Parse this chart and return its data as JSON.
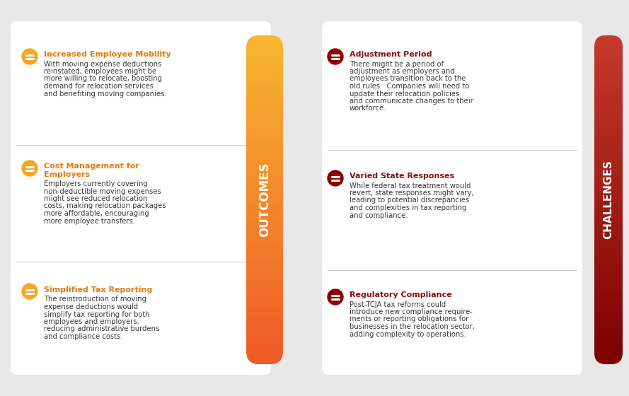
{
  "bg_color": "#e8e8e8",
  "panel_color": "#ffffff",
  "outcomes_title": "OUTCOMES",
  "challenges_title": "CHALLENGES",
  "outcomes_gradient_top": "#f7b731",
  "outcomes_gradient_bottom": "#f05a28",
  "challenges_color_top": "#c0392b",
  "challenges_color_bottom": "#7b0000",
  "icon_color_outcomes": "#f5a623",
  "icon_color_challenges": "#8b0000",
  "outcomes_items": [
    {
      "title": "Increased Employee Mobility",
      "body": "With moving expense deductions\nreinstated, employees might be\nmore willing to relocate, boosting\ndemand for relocation services\nand benefiting moving companies."
    },
    {
      "title": "Cost Management for\nEmployers",
      "body": "Employers currently covering\nnon-deductible moving expenses\nmight see reduced relocation\ncosts, making relocation packages\nmore affordable, encouraging\nmore employee transfers."
    },
    {
      "title": "Simplified Tax Reporting",
      "body": "The reintroduction of moving\nexpense deductions would\nsimplify tax reporting for both\nemployees and employers,\nreducing administrative burdens\nand compliance costs."
    }
  ],
  "challenges_items": [
    {
      "title": "Adjustment Period",
      "body": "There might be a period of\nadjustment as employers and\nemployees transition back to the\nold rules.  Companies will need to\nupdate their relocation policies\nand communicate changes to their\nworkforce."
    },
    {
      "title": "Varied State Responses",
      "body": "While federal tax treatment would\nrevert, state responses might vary,\nleading to potential discrepancies\nand complexities in tax reporting\nand compliance."
    },
    {
      "title": "Regulatory Compliance",
      "body": "Post-TCJA tax reforms could\nintroduce new compliance require-\nments or reporting obligations for\nbusinesses in the relocation sector,\nadding complexity to operations."
    }
  ]
}
